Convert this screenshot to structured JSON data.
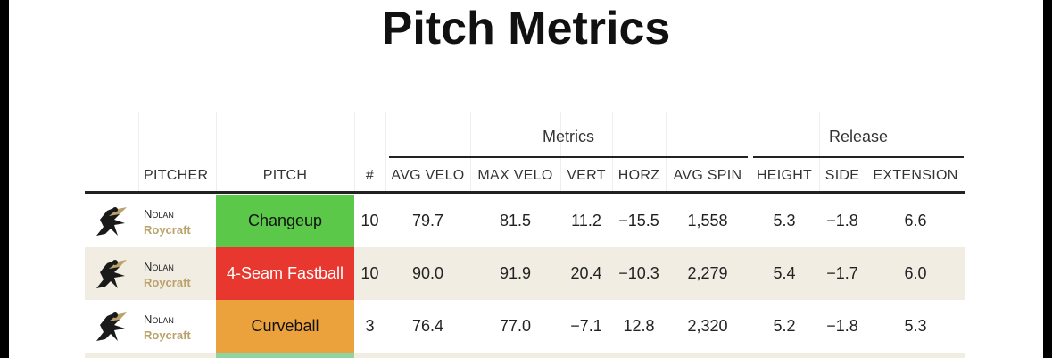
{
  "title": "Pitch Metrics",
  "table": {
    "groups": [
      "Metrics",
      "Release"
    ],
    "headers": [
      "PITCHER",
      "PITCH",
      "#",
      "AVG VELO",
      "MAX VELO",
      "VERT",
      "HORZ",
      "AVG SPIN",
      "HEIGHT",
      "SIDE",
      "EXTENSION"
    ],
    "rows": [
      {
        "pitcher_first": "Nolan",
        "pitcher_last": "Roycraft",
        "pitch": "Changeup",
        "pitch_color": "#5cc84a",
        "cells": [
          "10",
          "79.7",
          "81.5",
          "11.2",
          "−15.5",
          "1,558",
          "5.3",
          "−1.8",
          "6.6"
        ]
      },
      {
        "pitcher_first": "Nolan",
        "pitcher_last": "Roycraft",
        "pitch": "4-Seam Fastball",
        "pitch_color": "#e8372e",
        "cells": [
          "10",
          "90.0",
          "91.9",
          "20.4",
          "−10.3",
          "2,279",
          "5.4",
          "−1.7",
          "6.0"
        ]
      },
      {
        "pitcher_first": "Nolan",
        "pitcher_last": "Roycraft",
        "pitch": "Curveball",
        "pitch_color": "#eca23c",
        "cells": [
          "3",
          "76.4",
          "77.0",
          "−7.1",
          "12.8",
          "2,320",
          "5.2",
          "−1.8",
          "5.3"
        ]
      }
    ]
  }
}
